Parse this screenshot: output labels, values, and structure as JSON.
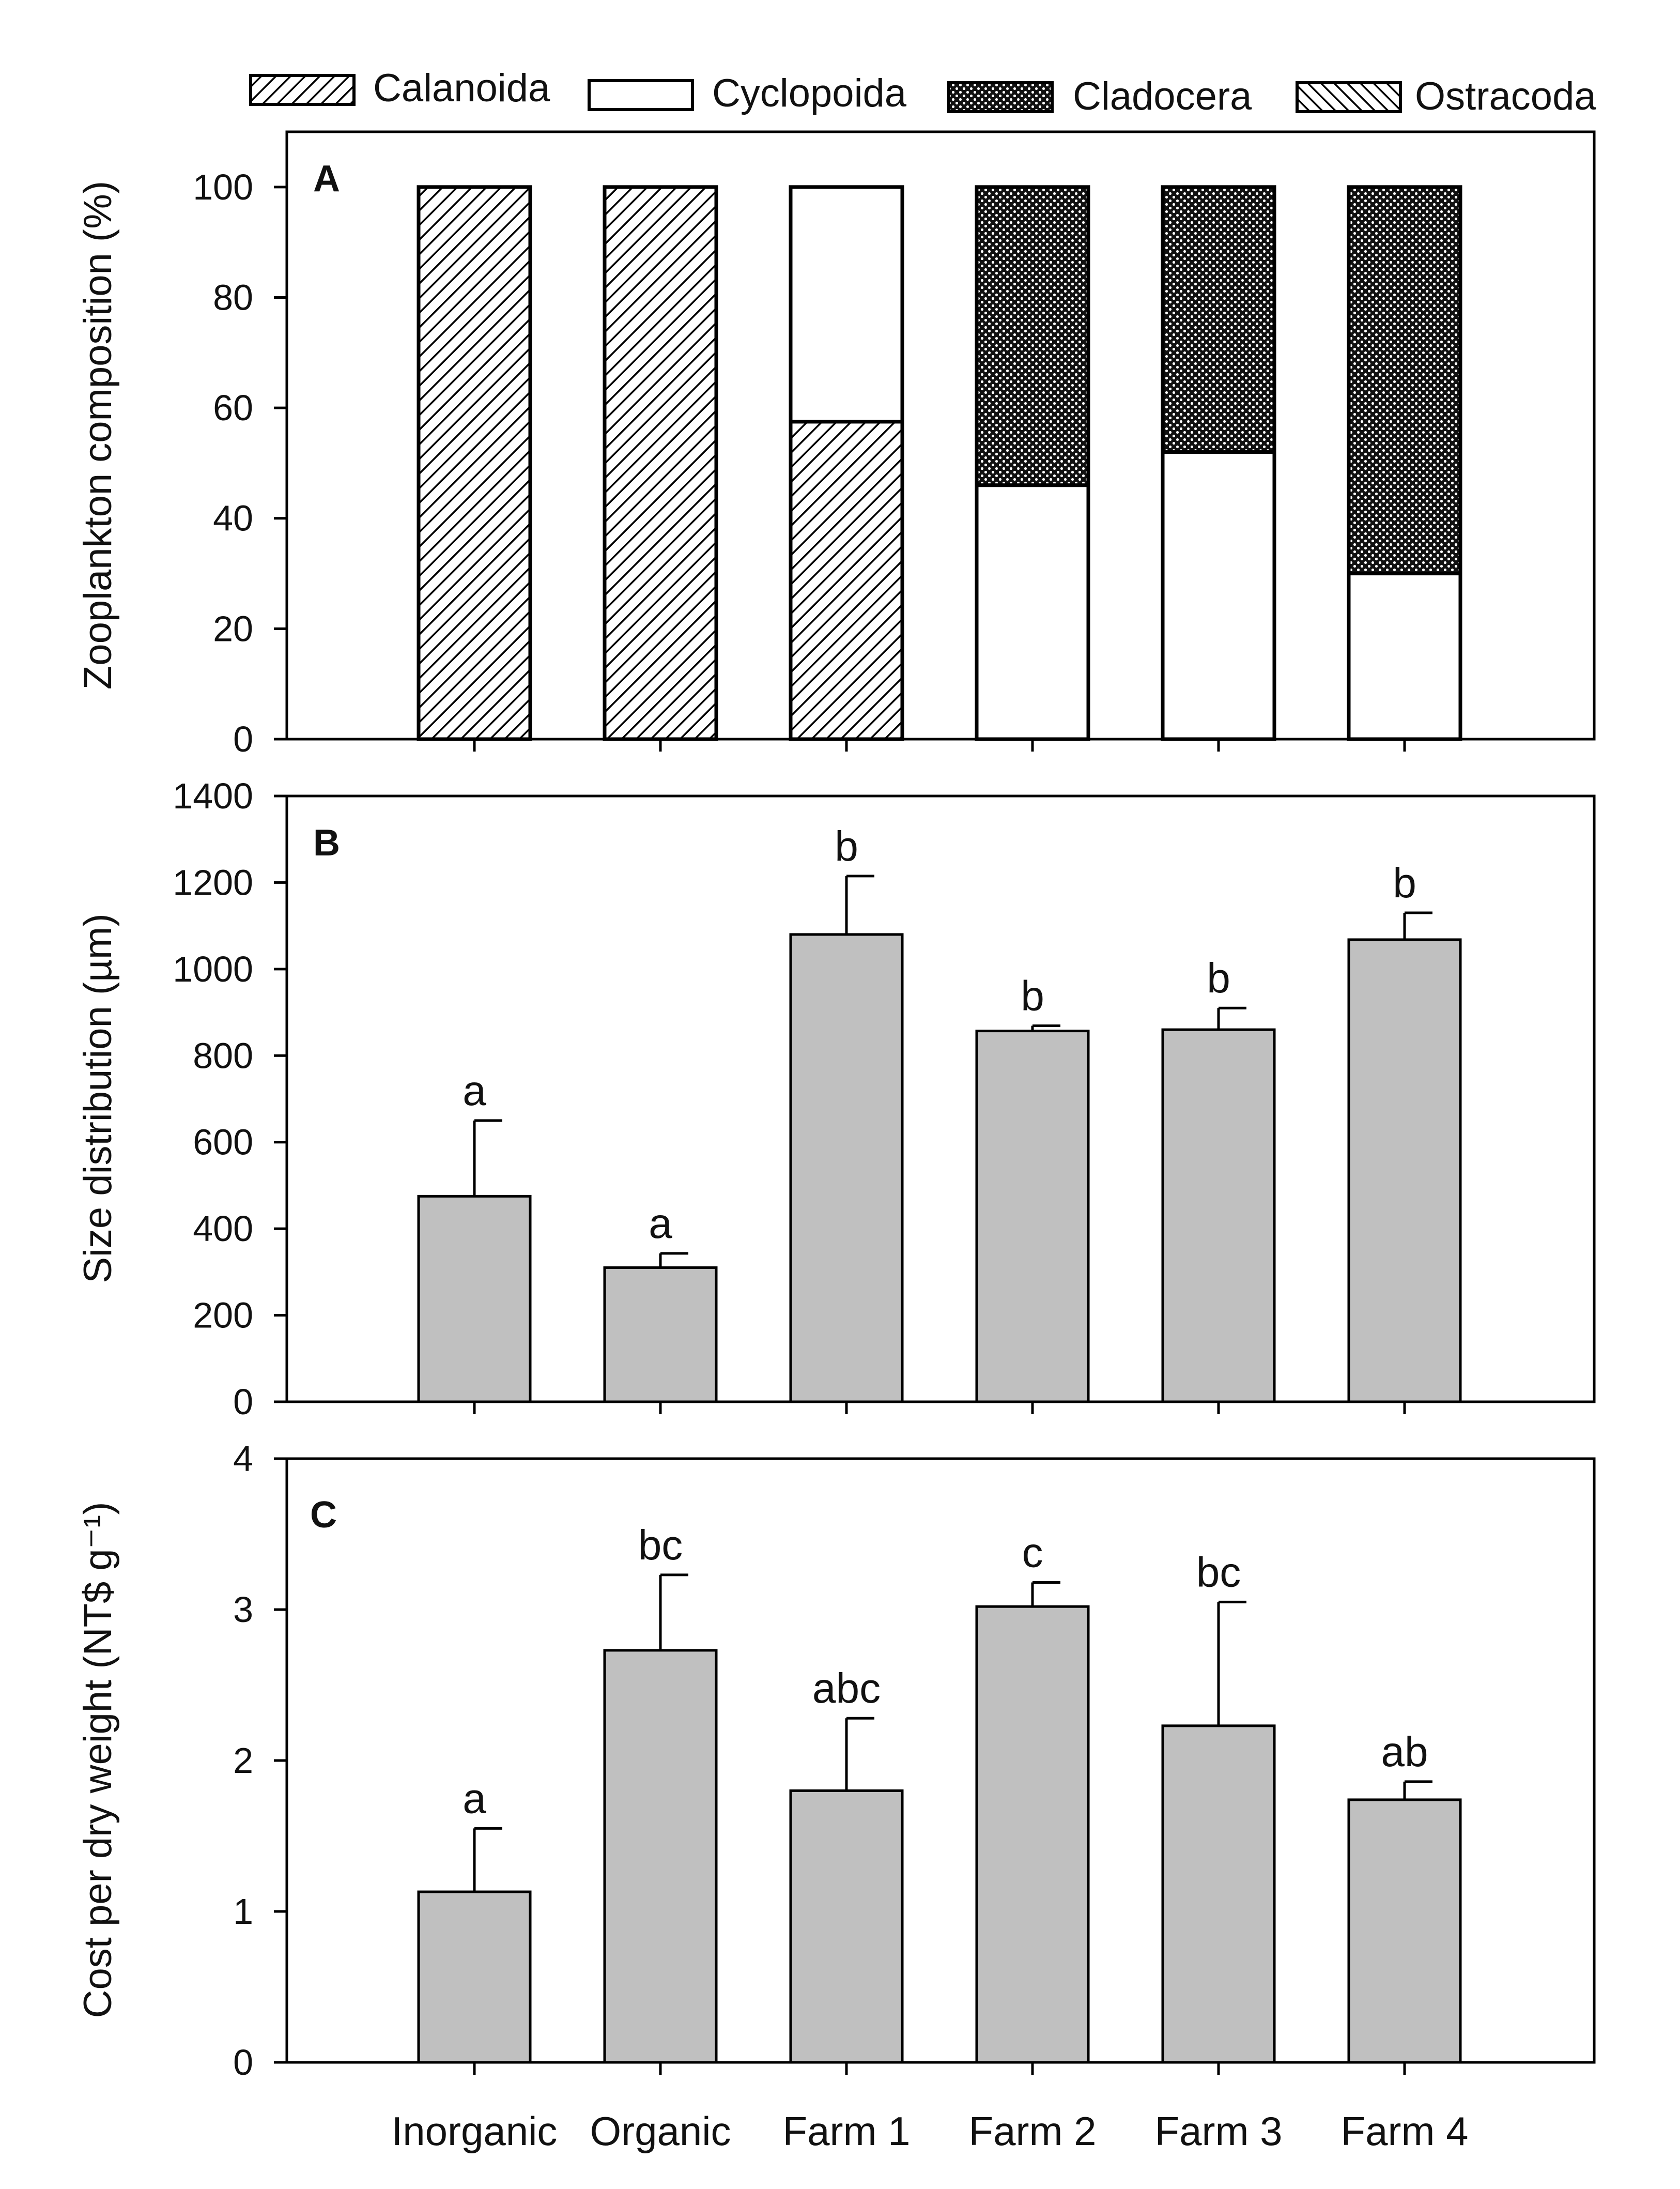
{
  "categories": [
    "Inorganic",
    "Organic",
    "Farm 1",
    "Farm 2",
    "Farm 3",
    "Farm 4"
  ],
  "legend": [
    {
      "name": "Calanoida",
      "pattern": "hatch-calanoida"
    },
    {
      "name": "Cyclopoida",
      "pattern": "none"
    },
    {
      "name": "Cladocera",
      "pattern": "dots-cladocera"
    },
    {
      "name": "Ostracoda",
      "pattern": "hatch-ostracoda"
    }
  ],
  "colors": {
    "bar_fill": "#c0c0c0",
    "stroke": "#000000",
    "background": "#ffffff"
  },
  "chart_data": [
    {
      "type": "bar",
      "stacked": true,
      "panel": "A",
      "ylabel": "Zooplankton composition (%)",
      "ylim": [
        0,
        110
      ],
      "yticks": [
        0,
        20,
        40,
        60,
        80,
        100
      ],
      "ytick_labels": [
        "0",
        "20",
        "40",
        "60",
        "80",
        "100"
      ],
      "series": [
        {
          "name": "Calanoida",
          "values": [
            100,
            100,
            57.5,
            0,
            0,
            0
          ]
        },
        {
          "name": "Cyclopoida",
          "values": [
            0,
            0,
            42.5,
            46,
            52,
            30
          ]
        },
        {
          "name": "Cladocera",
          "values": [
            0,
            0,
            0,
            54,
            48,
            70
          ]
        },
        {
          "name": "Ostracoda",
          "values": [
            0,
            0,
            0,
            0,
            0,
            0
          ]
        }
      ]
    },
    {
      "type": "bar",
      "panel": "B",
      "ylabel": "Size distribution (µm)",
      "ylim": [
        0,
        1400
      ],
      "yticks": [
        0,
        200,
        400,
        600,
        800,
        1000,
        1200,
        1400
      ],
      "ytick_labels": [
        "0",
        "200",
        "400",
        "600",
        "800",
        "1000",
        "1200",
        "1400"
      ],
      "values": [
        475,
        310,
        1080,
        857,
        860,
        1068
      ],
      "errors": [
        175,
        33,
        135,
        12,
        50,
        62
      ],
      "sig_labels": [
        "a",
        "a",
        "b",
        "b",
        "b",
        "b"
      ]
    },
    {
      "type": "bar",
      "panel": "C",
      "ylabel": "Cost per dry weight (NT$ g⁻¹)",
      "ylim": [
        0,
        4
      ],
      "yticks": [
        0,
        1,
        2,
        3,
        4
      ],
      "ytick_labels": [
        "0",
        "1",
        "2",
        "3",
        "4"
      ],
      "values": [
        1.13,
        2.73,
        1.8,
        3.02,
        2.23,
        1.74
      ],
      "errors": [
        0.42,
        0.5,
        0.48,
        0.16,
        0.82,
        0.12
      ],
      "sig_labels": [
        "a",
        "bc",
        "abc",
        "c",
        "bc",
        "ab"
      ]
    }
  ]
}
